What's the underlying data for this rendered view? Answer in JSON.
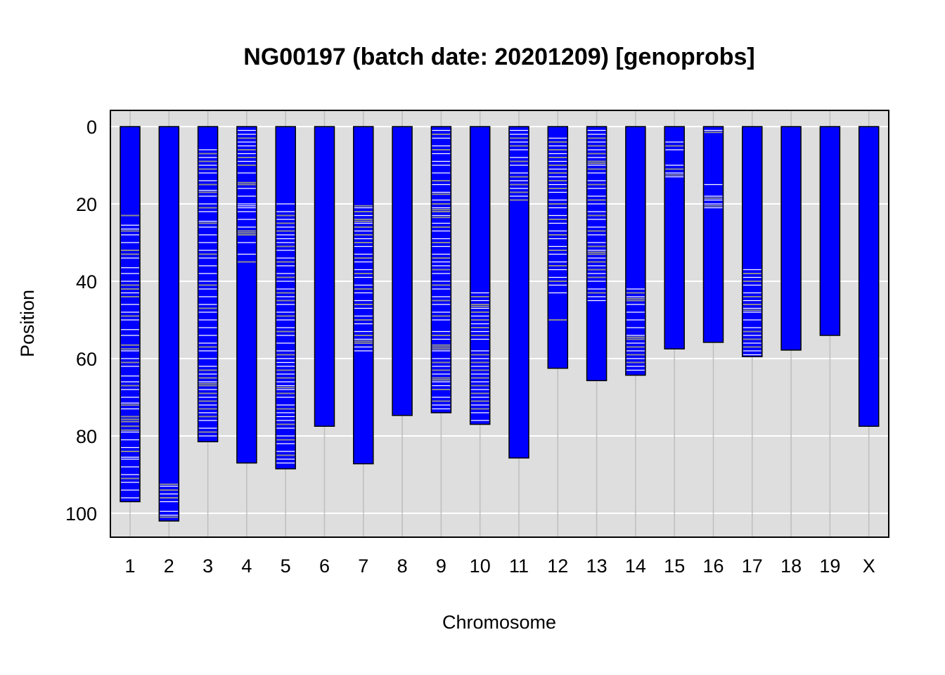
{
  "chart_data": {
    "type": "chromosome-ideogram",
    "title": "NG00197 (batch date: 20201209) [genoprobs]",
    "xlabel": "Chromosome",
    "ylabel": "Position",
    "ylim": [
      0,
      106
    ],
    "y_reversed": true,
    "yticks": [
      0,
      20,
      40,
      60,
      80,
      100
    ],
    "grid": true,
    "colors": {
      "panel_bg": "#dedede",
      "bar_fill": "#0000ff",
      "bar_border": "#000000",
      "grid_major": "#ffffff",
      "grid_vertical": "#bebebe",
      "marker_white": "#ffffff",
      "marker_gray": "#8c8c8c"
    },
    "chromosomes": [
      {
        "name": "1",
        "length": 97,
        "white": [
          25.5,
          26.5,
          28,
          30,
          34,
          36.5,
          38,
          40,
          43,
          46,
          48,
          50,
          52.5,
          54,
          58,
          60,
          62,
          64.5,
          66,
          68,
          70,
          71.5,
          73,
          79,
          81,
          83,
          85.5,
          86,
          88,
          90,
          92,
          94,
          96
        ],
        "gray": [
          23,
          27,
          32,
          33,
          41,
          42,
          44,
          49,
          56.5,
          57.5,
          61,
          67,
          72,
          75,
          75.7,
          76.3,
          77.5,
          78.5,
          84,
          91
        ]
      },
      {
        "name": "2",
        "length": 102,
        "white": [
          93,
          95,
          97,
          99.5,
          100.5
        ],
        "gray": [
          92.5,
          94,
          96,
          101
        ]
      },
      {
        "name": "3",
        "length": 81.5,
        "white": [
          6,
          8,
          10,
          12,
          14,
          16.5,
          18,
          20,
          22,
          24.5,
          26,
          28,
          30,
          32,
          34,
          36,
          38,
          40,
          42,
          44,
          46,
          48,
          50,
          52,
          54,
          56,
          58,
          60,
          62,
          64,
          66,
          68,
          70,
          72,
          74,
          76,
          78,
          80
        ],
        "gray": [
          7,
          9,
          11,
          15,
          17,
          21,
          25,
          33,
          41,
          47,
          57,
          63,
          65,
          66.5,
          67,
          69,
          71,
          73,
          75,
          79
        ]
      },
      {
        "name": "4",
        "length": 87,
        "white": [
          1,
          2,
          4,
          5,
          7,
          9,
          12,
          16,
          18,
          20,
          20.5,
          21,
          22,
          24,
          26,
          30,
          33
        ],
        "gray": [
          3,
          6,
          8,
          10,
          14.5,
          15,
          27,
          27.5,
          28,
          35
        ]
      },
      {
        "name": "5",
        "length": 88.5,
        "white": [
          20,
          22,
          24,
          26,
          28,
          29,
          30,
          32,
          34,
          36,
          38,
          40,
          42,
          44,
          46,
          48,
          50,
          52,
          54,
          56,
          58,
          60,
          61,
          62,
          64,
          66,
          67,
          68,
          70,
          72,
          74,
          75,
          76,
          78,
          80,
          82,
          84,
          86,
          87
        ],
        "gray": [
          23,
          25,
          27,
          31,
          35,
          39,
          43,
          45,
          49,
          53,
          59,
          63,
          65,
          67.5,
          69,
          73,
          77,
          81,
          85
        ]
      },
      {
        "name": "6",
        "length": 77.5,
        "white": [],
        "gray": []
      },
      {
        "name": "7",
        "length": 87.2,
        "white": [
          21,
          23,
          25,
          27,
          29,
          31,
          33,
          35,
          37,
          39,
          41,
          43,
          45,
          47,
          49,
          51,
          53,
          55,
          57,
          58
        ],
        "gray": [
          20.5,
          22,
          24,
          24.5,
          26,
          28,
          30,
          34,
          38,
          42,
          46,
          50,
          54,
          55.5,
          56
        ]
      },
      {
        "name": "8",
        "length": 74.7,
        "white": [],
        "gray": []
      },
      {
        "name": "9",
        "length": 74,
        "white": [
          1,
          3,
          5,
          7,
          9,
          10,
          12,
          15,
          17,
          19,
          21,
          23,
          25,
          27,
          29,
          31,
          33,
          35,
          36,
          38,
          40,
          42,
          44,
          46,
          48,
          50,
          53,
          55,
          58,
          60,
          62,
          64,
          66,
          67,
          70,
          72,
          73
        ],
        "gray": [
          2,
          6,
          14,
          17.5,
          20,
          21.5,
          22,
          23.5,
          26,
          30,
          34,
          37,
          41,
          45,
          49,
          54,
          56.5,
          57,
          57.5,
          61,
          63,
          65,
          65.5,
          68,
          71
        ]
      },
      {
        "name": "10",
        "length": 77,
        "white": [
          43,
          45,
          47,
          49,
          51,
          53,
          55,
          58,
          60,
          62,
          64,
          66,
          68,
          70,
          72,
          74,
          76
        ],
        "gray": [
          44,
          46,
          46.5,
          48,
          50,
          52,
          54,
          59,
          61,
          63,
          65,
          67,
          69,
          71,
          73
        ]
      },
      {
        "name": "11",
        "length": 85.7,
        "white": [
          1,
          2,
          4,
          6,
          8,
          10,
          12,
          14,
          16,
          18
        ],
        "gray": [
          3,
          5,
          9,
          13,
          15,
          17,
          19
        ]
      },
      {
        "name": "12",
        "length": 62.5,
        "white": [
          3,
          5,
          7,
          9,
          11,
          13,
          15,
          17,
          19,
          21,
          23,
          25,
          27,
          29,
          31,
          33,
          35,
          37,
          39,
          41,
          43
        ],
        "gray": [
          4,
          6,
          8,
          10,
          12,
          14,
          16,
          20,
          24,
          28,
          32,
          36,
          40,
          50
        ]
      },
      {
        "name": "13",
        "length": 65.7,
        "white": [
          1,
          2,
          4,
          6,
          8,
          10,
          12,
          14,
          16,
          18,
          20,
          22,
          24,
          26,
          28,
          30,
          32,
          34,
          36,
          38,
          40,
          42,
          44,
          45
        ],
        "gray": [
          3,
          5,
          7,
          9,
          9.5,
          11,
          15,
          19,
          23,
          27,
          31,
          32.5,
          33,
          35,
          37,
          39,
          43
        ]
      },
      {
        "name": "14",
        "length": 64.3,
        "white": [
          42,
          44,
          46,
          48,
          50,
          52,
          54,
          56,
          58,
          60,
          62,
          63
        ],
        "gray": [
          43,
          44.5,
          45,
          54.5,
          55,
          57,
          59,
          61
        ]
      },
      {
        "name": "15",
        "length": 57.5,
        "white": [
          4,
          6,
          10,
          12,
          13
        ],
        "gray": [
          5,
          11,
          12.5
        ]
      },
      {
        "name": "16",
        "length": 55.8,
        "white": [
          1,
          15,
          18,
          19,
          20,
          21
        ],
        "gray": [
          1.5,
          18.5,
          20.5
        ]
      },
      {
        "name": "17",
        "length": 59.5,
        "white": [
          37,
          39,
          41,
          43,
          45,
          47,
          48,
          50,
          52,
          54,
          56,
          58,
          59
        ],
        "gray": [
          38,
          40,
          44,
          46,
          47.5,
          53,
          55,
          57
        ]
      },
      {
        "name": "18",
        "length": 57.8,
        "white": [],
        "gray": []
      },
      {
        "name": "19",
        "length": 54,
        "white": [],
        "gray": []
      },
      {
        "name": "X",
        "length": 77.5,
        "white": [],
        "gray": []
      }
    ]
  }
}
